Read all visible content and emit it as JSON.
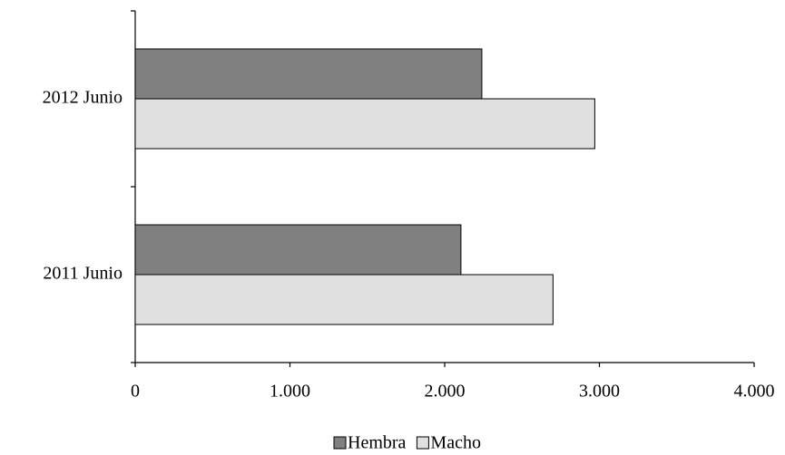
{
  "chart_data": {
    "type": "hbar",
    "categories": [
      "2011 Junio",
      "2012 Junio"
    ],
    "series": [
      {
        "name": "Hembra",
        "color": "#808080",
        "values": [
          2105,
          2240
        ]
      },
      {
        "name": "Macho",
        "color": "#e0e0e0",
        "values": [
          2700,
          2970
        ]
      }
    ],
    "xlim": [
      0,
      4000
    ],
    "xticks": [
      0,
      {
        "value": 1000,
        "label": "1.000"
      },
      {
        "value": 2000,
        "label": "2.000"
      },
      {
        "value": 3000,
        "label": "3.000"
      },
      {
        "value": 4000,
        "label": "4.000"
      }
    ],
    "grid": false,
    "legend": "bottom"
  }
}
